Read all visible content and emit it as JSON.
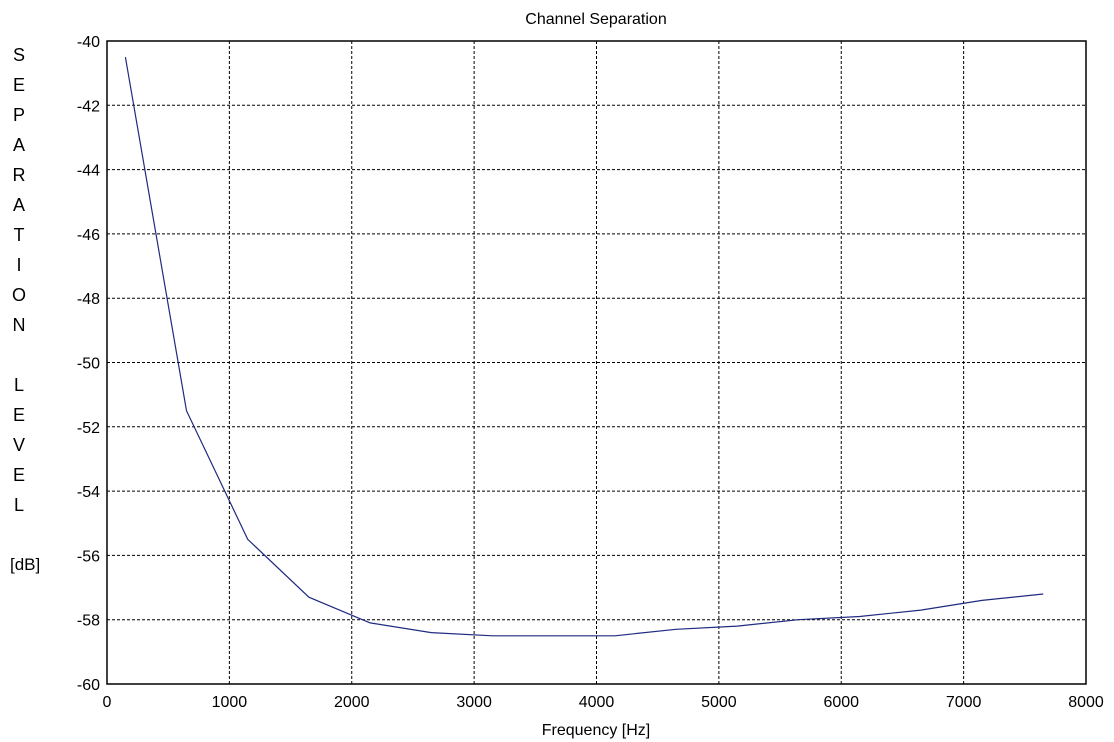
{
  "chart_data": {
    "type": "line",
    "title": "Channel Separation",
    "xlabel": "Frequency [Hz]",
    "ylabel_letters": [
      "S",
      "E",
      "P",
      "A",
      "R",
      "A",
      "T",
      "I",
      "O",
      "N",
      "",
      "L",
      "E",
      "V",
      "E",
      "L"
    ],
    "ylabel_unit": "[dB]",
    "xlim": [
      0,
      8000
    ],
    "ylim": [
      -60,
      -40
    ],
    "x_ticks": [
      "0",
      "1000",
      "2000",
      "3000",
      "4000",
      "5000",
      "6000",
      "7000",
      "8000"
    ],
    "y_ticks": [
      "-40",
      "-42",
      "-44",
      "-46",
      "-48",
      "-50",
      "-52",
      "-54",
      "-56",
      "-58",
      "-60"
    ],
    "grid": true,
    "series": [
      {
        "color": "#1f2a80",
        "x": [
          150,
          650,
          1150,
          1650,
          2150,
          2650,
          3150,
          3650,
          4150,
          4650,
          5150,
          5650,
          6150,
          6650,
          7150,
          7650
        ],
        "y": [
          -40.5,
          -51.5,
          -55.5,
          -57.3,
          -58.1,
          -58.4,
          -58.5,
          -58.5,
          -58.5,
          -58.3,
          -58.2,
          -58.0,
          -57.9,
          -57.7,
          -57.4,
          -57.2
        ]
      }
    ]
  }
}
